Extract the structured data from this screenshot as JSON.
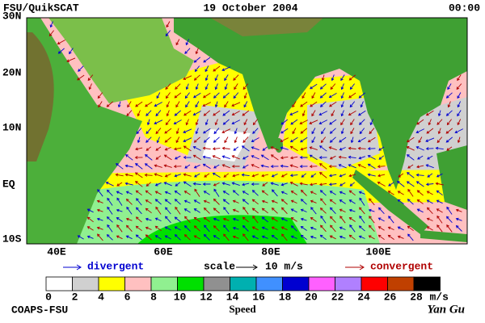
{
  "header": {
    "source": "FSU/QuikSCAT",
    "date": "19 October 2004",
    "time": "00:00"
  },
  "latitude_labels": [
    "30N",
    "20N",
    "10N",
    "EQ",
    "10S"
  ],
  "longitude_labels": [
    "40E",
    "60E",
    "80E",
    "100E"
  ],
  "legend": {
    "divergent": "divergent",
    "scale": "scale",
    "scale_value": "10 m/s",
    "convergent": "convergent"
  },
  "colorbar": {
    "colors": [
      "#ffffff",
      "#d0d0d0",
      "#ffff00",
      "#ffc0c0",
      "#90f090",
      "#00e000",
      "#909090",
      "#00b0b0",
      "#4090ff",
      "#0000d0",
      "#ff60ff",
      "#b080ff",
      "#ff0000",
      "#c04000",
      "#000000"
    ],
    "ticks": [
      0,
      2,
      4,
      6,
      8,
      10,
      12,
      14,
      16,
      18,
      20,
      22,
      24,
      26,
      28
    ],
    "unit": "m/s",
    "label": "Speed"
  },
  "footer": {
    "institution": "COAPS-FSU",
    "author": "Yan Gu"
  }
}
